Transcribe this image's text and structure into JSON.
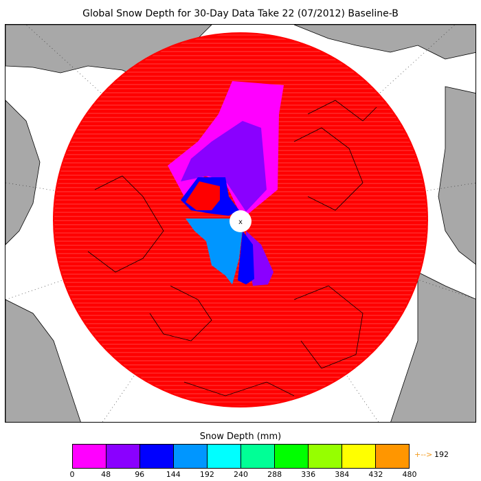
{
  "title": "Global Snow Depth for 30-Day Data Take 22 (07/2012) Baseline-B",
  "colorbar": {
    "title": "Snow Depth (mm)",
    "ticks": [
      "0",
      "48",
      "96",
      "144",
      "192",
      "240",
      "288",
      "336",
      "384",
      "432",
      "480"
    ],
    "colors": [
      "#ff00ff",
      "#8a00ff",
      "#0000ff",
      "#0096ff",
      "#00ffff",
      "#00ff96",
      "#00ff00",
      "#96ff00",
      "#ffff00",
      "#ff9600"
    ],
    "overflow_arrow": "+-->",
    "overflow_value": "192"
  },
  "map": {
    "background_color": "#ffffff",
    "land_color": "#a8a8a8",
    "dominant_field_color": "#ff0000",
    "pole_marker": "x"
  }
}
